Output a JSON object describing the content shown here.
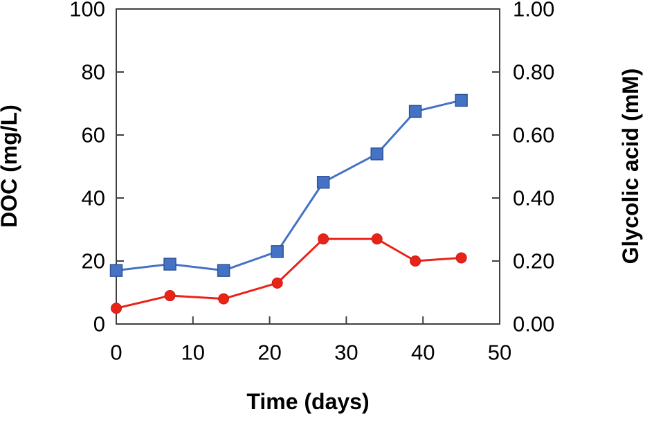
{
  "figure": {
    "background": "#ffffff",
    "axis_line_color": "#3f3f3f",
    "text_color": "#000000",
    "x_axis": {
      "label": "Time (days)",
      "tick_labels": [
        "0",
        "10",
        "20",
        "30",
        "40",
        "50"
      ],
      "tick_values": [
        0,
        10,
        20,
        30,
        40,
        50
      ]
    },
    "y_axis_left": {
      "label": "DOC (mg/L)",
      "tick_labels": [
        "0",
        "20",
        "40",
        "60",
        "80",
        "100"
      ],
      "tick_values": [
        0,
        20,
        40,
        60,
        80,
        100
      ]
    },
    "y_axis_right": {
      "label": "Glycolic acid (mM)",
      "tick_labels": [
        "0.00",
        "0.20",
        "0.40",
        "0.60",
        "0.80",
        "1.00"
      ],
      "tick_values": [
        0,
        0.2,
        0.4,
        0.6,
        0.8,
        1.0
      ]
    }
  },
  "chart_data": {
    "type": "line",
    "title": "",
    "xlabel": "Time (days)",
    "ylabel_left": "DOC (mg/L)",
    "ylabel_right": "Glycolic acid (mM)",
    "x": [
      0,
      7,
      14,
      21,
      27,
      34,
      39,
      45
    ],
    "xlim": [
      0,
      50
    ],
    "ylim_left": [
      0,
      100
    ],
    "ylim_right": [
      0,
      1.0
    ],
    "grid": false,
    "legend": false,
    "series": [
      {
        "name": "DOC (mg/L)",
        "axis": "left",
        "marker": "square",
        "line_color": "#4472c4",
        "marker_fill": "#4472c4",
        "marker_stroke": "#2f5597",
        "values": [
          17,
          19,
          17,
          23,
          45,
          54,
          67.5,
          71
        ]
      },
      {
        "name": "Glycolic acid (mM)",
        "axis": "right",
        "marker": "circle",
        "line_color": "#ea2318",
        "marker_fill": "#ea2318",
        "marker_stroke": "#c81a10",
        "values": [
          0.05,
          0.09,
          0.08,
          0.13,
          0.27,
          0.27,
          0.2,
          0.21
        ]
      }
    ]
  }
}
